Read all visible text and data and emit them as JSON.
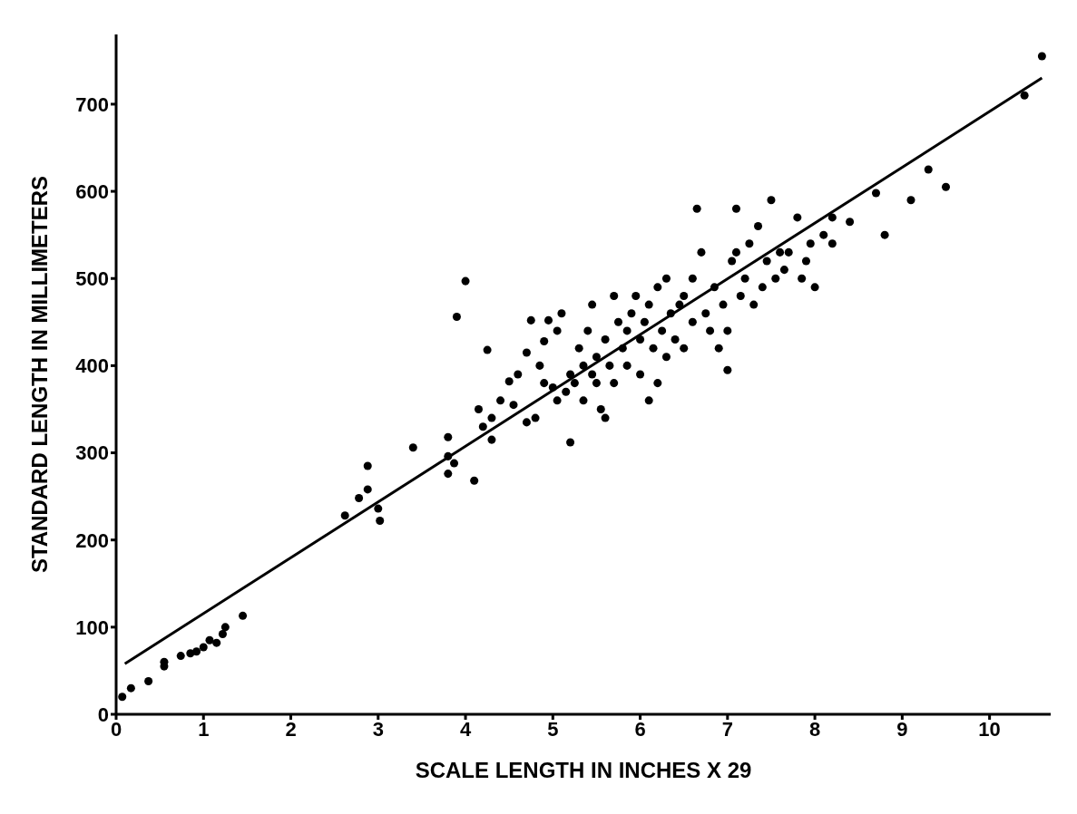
{
  "chart_data": {
    "type": "scatter",
    "xlabel": "SCALE LENGTH IN INCHES X 29",
    "ylabel": "STANDARD LENGTH IN MILLIMETERS",
    "xlim": [
      0,
      10.7
    ],
    "ylim": [
      0,
      780
    ],
    "xticks": [
      0,
      1,
      2,
      3,
      4,
      5,
      6,
      7,
      8,
      9,
      10
    ],
    "yticks": [
      0,
      100,
      200,
      300,
      400,
      500,
      600,
      700
    ],
    "marker": "circle",
    "line_style": "solid",
    "series": [
      {
        "color": "#000000",
        "x": [
          0.07,
          0.17,
          0.37,
          0.55,
          0.55,
          0.74,
          0.85,
          0.92,
          1.0,
          1.07,
          1.15,
          1.22,
          1.25,
          1.45,
          2.62,
          2.78,
          2.88,
          2.88,
          3.0,
          3.02,
          3.4,
          3.8,
          3.8,
          3.8,
          3.87,
          3.9,
          4.0,
          4.1,
          4.15,
          4.2,
          4.25,
          4.3,
          4.3,
          4.4,
          4.5,
          4.55,
          4.6,
          4.7,
          4.7,
          4.75,
          4.8,
          4.85,
          4.9,
          4.9,
          4.95,
          5.0,
          5.05,
          5.05,
          5.1,
          5.15,
          5.2,
          5.2,
          5.25,
          5.3,
          5.35,
          5.35,
          5.4,
          5.45,
          5.45,
          5.5,
          5.5,
          5.55,
          5.6,
          5.6,
          5.65,
          5.7,
          5.7,
          5.75,
          5.8,
          5.85,
          5.85,
          5.9,
          5.95,
          6.0,
          6.0,
          6.05,
          6.1,
          6.1,
          6.15,
          6.2,
          6.2,
          6.25,
          6.3,
          6.3,
          6.35,
          6.4,
          6.45,
          6.5,
          6.5,
          6.6,
          6.6,
          6.65,
          6.7,
          6.75,
          6.8,
          6.85,
          6.9,
          6.95,
          7.0,
          7.0,
          7.05,
          7.1,
          7.1,
          7.15,
          7.2,
          7.25,
          7.3,
          7.35,
          7.4,
          7.45,
          7.5,
          7.55,
          7.6,
          7.65,
          7.7,
          7.8,
          7.85,
          7.9,
          7.95,
          8.0,
          8.1,
          8.2,
          8.2,
          8.4,
          8.7,
          8.8,
          9.1,
          9.3,
          9.5,
          10.4,
          10.6
        ],
        "values": [
          20,
          30,
          38,
          60,
          55,
          67,
          70,
          72,
          77,
          85,
          82,
          92,
          100,
          113,
          228,
          248,
          258,
          285,
          236,
          222,
          306,
          318,
          296,
          276,
          288,
          456,
          497,
          268,
          350,
          330,
          418,
          340,
          315,
          360,
          382,
          355,
          390,
          415,
          335,
          452,
          340,
          400,
          428,
          380,
          452,
          375,
          360,
          440,
          460,
          370,
          312,
          390,
          380,
          420,
          400,
          360,
          440,
          470,
          390,
          410,
          380,
          350,
          430,
          340,
          400,
          480,
          380,
          450,
          420,
          440,
          400,
          460,
          480,
          430,
          390,
          450,
          470,
          360,
          420,
          490,
          380,
          440,
          500,
          410,
          460,
          430,
          470,
          480,
          420,
          500,
          450,
          580,
          530,
          460,
          440,
          490,
          420,
          470,
          395,
          440,
          520,
          530,
          580,
          480,
          500,
          540,
          470,
          560,
          490,
          520,
          590,
          500,
          530,
          510,
          530,
          570,
          500,
          520,
          540,
          490,
          550,
          570,
          540,
          565,
          598,
          550,
          590,
          625,
          605,
          710,
          755
        ]
      },
      {
        "type": "line",
        "marker": "none",
        "color": "#000000",
        "x": [
          0.1,
          10.6
        ],
        "values": [
          58,
          730
        ]
      }
    ]
  }
}
